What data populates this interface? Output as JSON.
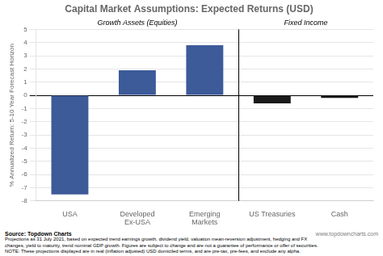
{
  "chart_data": {
    "type": "bar",
    "title": "Capital Market Assumptions: Expected Returns (USD)",
    "categories": [
      "USA",
      "Developed\nEx-USA",
      "Emerging\nMarkets",
      "US Treasuries",
      "Cash"
    ],
    "values": [
      -7.5,
      1.9,
      3.8,
      -0.6,
      -0.2
    ],
    "colors": [
      "#3d5a99",
      "#3d5a99",
      "#3d5a99",
      "#1a1a1a",
      "#1a1a1a"
    ],
    "ylabel": "% Annualized Return: 5-10 Year Forecast Horizon",
    "ylim": [
      -8,
      5
    ],
    "yticks": [
      -8,
      -7,
      -6,
      -5,
      -4,
      -3,
      -2,
      -1,
      0,
      1,
      2,
      3,
      4,
      5
    ],
    "grid": true,
    "annotations": [
      "Growth Assets (Equities)",
      "Fixed Income",
      "Source: Topdown Charts",
      "www.topdowncharts.com",
      "Projections as 31 July 2021, based on expected trend earnings growth, dividend yield, valuation mean-reversion adjustment, hedging and FX",
      "changes, yield to maturity, trend nominal GDP growth.  Figures are subject to change and are not a guarantee of performance or offer of securities.",
      "NOTE: These projections displayed are in real (inflation adjusted) USD domiciled terms, and are pre-tax, pre-fees, and exclude any alpha."
    ]
  }
}
